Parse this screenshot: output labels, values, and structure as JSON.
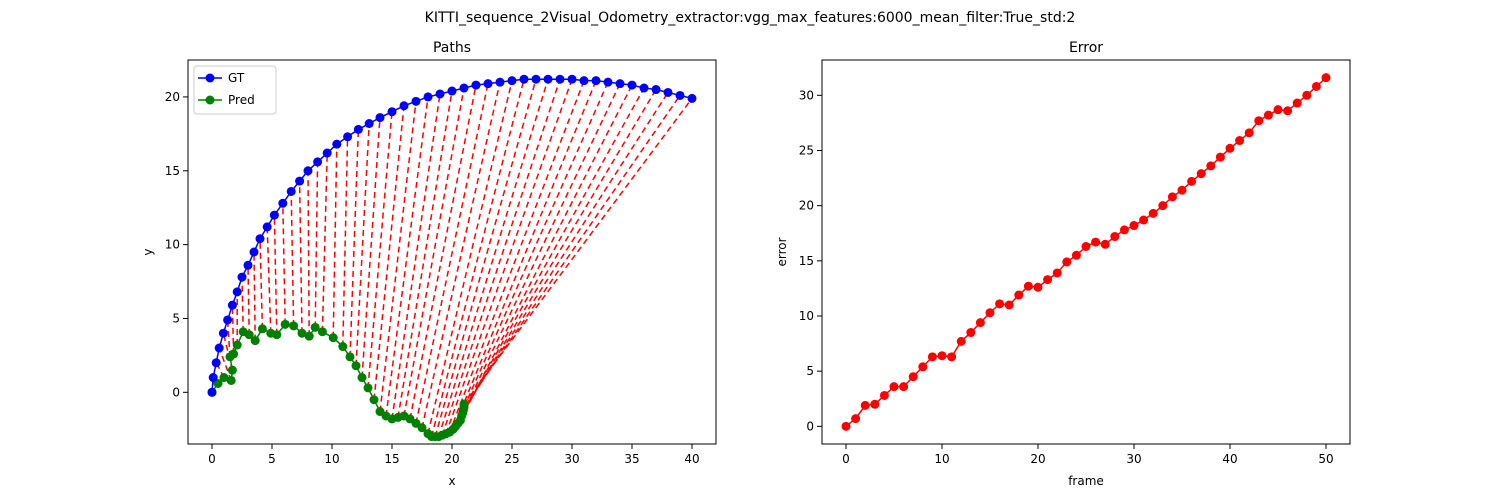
{
  "figure": {
    "suptitle": "KITTI_sequence_2Visual_Odometry_extractor:vgg_max_features:6000_mean_filter:True_std:2"
  },
  "colors": {
    "gt": "#0000ff",
    "pred": "#008000",
    "link": "#ff0000",
    "error": "#ff0000"
  },
  "chart_data": [
    {
      "type": "line",
      "title": "Paths",
      "xlabel": "x",
      "ylabel": "y",
      "xlim": [
        -2,
        42
      ],
      "ylim": [
        -3.5,
        22.5
      ],
      "xticks": [
        0,
        5,
        10,
        15,
        20,
        25,
        30,
        35,
        40
      ],
      "yticks": [
        0,
        5,
        10,
        15,
        20
      ],
      "grid": false,
      "legend": "top-left",
      "series": [
        {
          "name": "GT",
          "x": [
            0.0,
            0.1,
            0.35,
            0.6,
            0.95,
            1.3,
            1.7,
            2.1,
            2.5,
            3.0,
            3.5,
            4.0,
            4.6,
            5.2,
            5.9,
            6.6,
            7.3,
            8.0,
            8.8,
            9.6,
            10.4,
            11.3,
            12.2,
            13.1,
            14.0,
            15.0,
            16.0,
            17.0,
            18.0,
            19.0,
            20.0,
            21.0,
            22.0,
            23.0,
            24.0,
            25.0,
            26.0,
            27.0,
            28.0,
            29.0,
            30.0,
            31.0,
            32.0,
            33.0,
            34.0,
            35.0,
            36.0,
            37.0,
            38.0,
            39.0,
            40.0
          ],
          "y": [
            0.0,
            1.0,
            2.0,
            3.0,
            4.0,
            4.9,
            5.9,
            6.8,
            7.8,
            8.6,
            9.5,
            10.4,
            11.2,
            12.0,
            12.8,
            13.6,
            14.3,
            15.0,
            15.6,
            16.2,
            16.8,
            17.3,
            17.8,
            18.2,
            18.6,
            19.0,
            19.4,
            19.7,
            20.0,
            20.2,
            20.4,
            20.6,
            20.8,
            20.9,
            21.0,
            21.1,
            21.2,
            21.2,
            21.2,
            21.2,
            21.2,
            21.1,
            21.1,
            21.0,
            20.9,
            20.8,
            20.6,
            20.5,
            20.3,
            20.1,
            19.9
          ]
        },
        {
          "name": "Pred",
          "x": [
            0.0,
            0.5,
            1.0,
            1.6,
            1.7,
            1.5,
            1.8,
            2.1,
            2.6,
            3.1,
            3.6,
            4.2,
            4.9,
            5.4,
            6.1,
            6.8,
            7.5,
            8.1,
            8.6,
            9.2,
            10.1,
            10.9,
            11.5,
            12.0,
            12.5,
            13.0,
            13.5,
            14.0,
            14.5,
            15.0,
            15.5,
            16.0,
            16.5,
            17.0,
            17.5,
            18.0,
            18.3,
            18.6,
            18.9,
            19.2,
            19.5,
            19.8,
            20.1,
            20.3,
            20.5,
            20.7,
            20.8,
            20.9,
            20.95,
            21.0,
            21.0
          ],
          "y": [
            0.0,
            0.6,
            1.0,
            0.8,
            1.5,
            2.4,
            2.6,
            3.2,
            4.1,
            3.9,
            3.5,
            4.3,
            4.0,
            3.9,
            4.6,
            4.5,
            4.0,
            3.8,
            4.4,
            4.1,
            3.7,
            3.1,
            2.4,
            1.8,
            1.0,
            0.3,
            -0.5,
            -1.3,
            -1.6,
            -1.8,
            -1.7,
            -1.6,
            -1.8,
            -2.1,
            -2.4,
            -2.8,
            -3.0,
            -3.0,
            -3.0,
            -2.9,
            -2.8,
            -2.7,
            -2.5,
            -2.3,
            -2.1,
            -1.9,
            -1.6,
            -1.4,
            -1.2,
            -1.0,
            -0.8
          ]
        }
      ]
    },
    {
      "type": "line",
      "title": "Error",
      "xlabel": "frame",
      "ylabel": "error",
      "xlim": [
        -2.5,
        52.5
      ],
      "ylim": [
        -1.6,
        33.2
      ],
      "xticks": [
        0,
        10,
        20,
        30,
        40,
        50
      ],
      "yticks": [
        0,
        5,
        10,
        15,
        20,
        25,
        30
      ],
      "grid": false,
      "series": [
        {
          "x": [
            0,
            1,
            2,
            3,
            4,
            5,
            6,
            7,
            8,
            9,
            10,
            11,
            12,
            13,
            14,
            15,
            16,
            17,
            18,
            19,
            20,
            21,
            22,
            23,
            24,
            25,
            26,
            27,
            28,
            29,
            30,
            31,
            32,
            33,
            34,
            35,
            36,
            37,
            38,
            39,
            40,
            41,
            42,
            43,
            44,
            45,
            46,
            47,
            48,
            49,
            50
          ],
          "values": [
            0.0,
            0.7,
            1.9,
            2.0,
            2.8,
            3.6,
            3.6,
            4.5,
            5.4,
            6.3,
            6.4,
            6.3,
            7.7,
            8.5,
            9.4,
            10.3,
            11.1,
            11.0,
            11.9,
            12.7,
            12.6,
            13.3,
            13.9,
            14.9,
            15.5,
            16.3,
            16.7,
            16.5,
            17.2,
            17.8,
            18.2,
            18.7,
            19.3,
            20.0,
            20.8,
            21.4,
            22.2,
            22.9,
            23.6,
            24.4,
            25.2,
            25.9,
            26.6,
            27.7,
            28.2,
            28.7,
            28.6,
            29.3,
            30.0,
            30.8,
            31.6
          ]
        }
      ]
    }
  ]
}
